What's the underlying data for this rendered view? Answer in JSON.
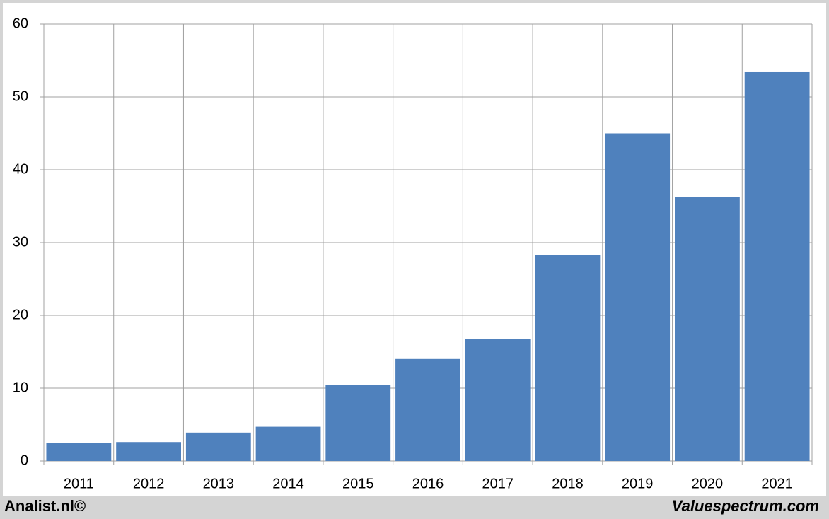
{
  "chart_data": {
    "type": "bar",
    "categories": [
      "2011",
      "2012",
      "2013",
      "2014",
      "2015",
      "2016",
      "2017",
      "2018",
      "2019",
      "2020",
      "2021"
    ],
    "values": [
      2.5,
      2.6,
      3.9,
      4.7,
      10.4,
      14.0,
      16.7,
      28.3,
      45.0,
      36.3,
      53.4
    ],
    "color": "#4f81bd",
    "ylim": [
      0,
      60
    ],
    "yticks": [
      0,
      10,
      20,
      30,
      40,
      50,
      60
    ],
    "grid": true,
    "footer_left": "Analist.nl©",
    "footer_right": "Valuespectrum.com"
  }
}
